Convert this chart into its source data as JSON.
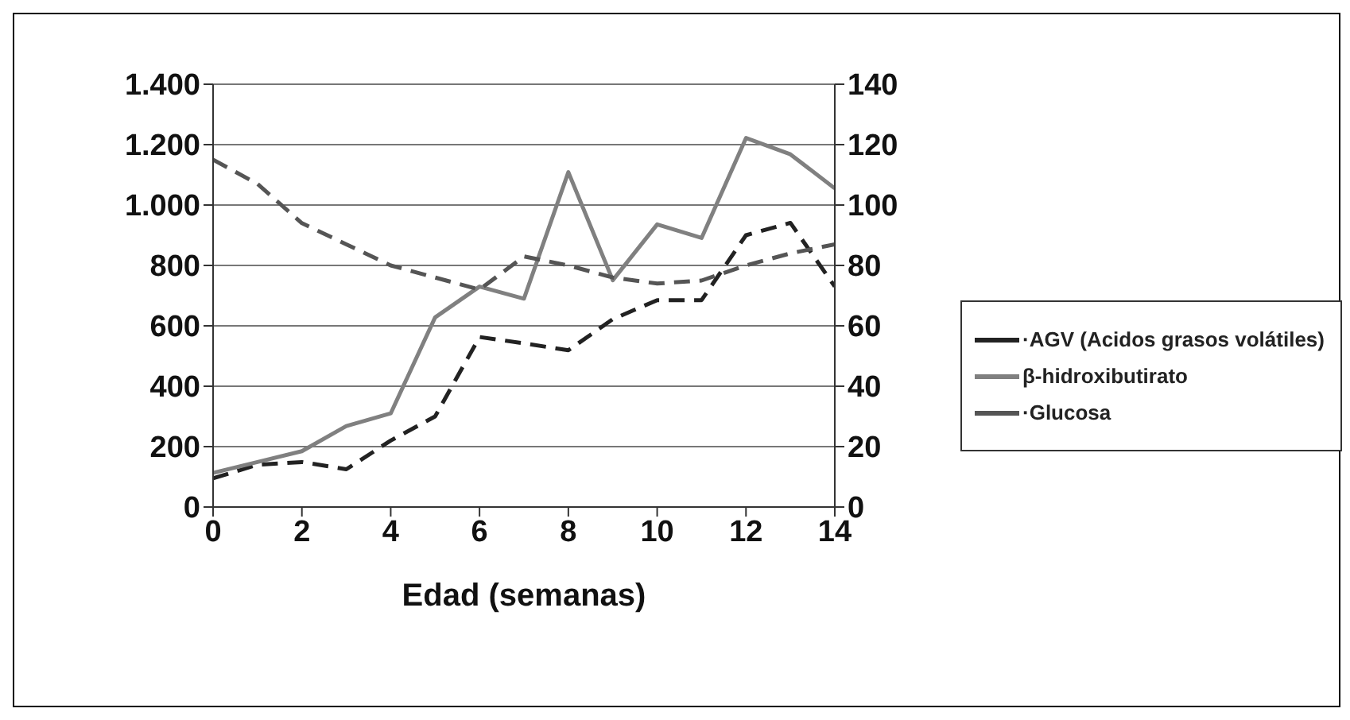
{
  "chart_data": {
    "type": "line",
    "xlabel": "Edad (semanas)",
    "x": [
      0,
      1,
      2,
      3,
      4,
      5,
      6,
      7,
      8,
      9,
      10,
      11,
      12,
      13,
      14
    ],
    "xlim": [
      0,
      14
    ],
    "xticks": [
      0,
      2,
      4,
      6,
      8,
      10,
      12,
      14
    ],
    "ylim": [
      0,
      1400
    ],
    "yticks": [
      {
        "value": 0,
        "label": "0"
      },
      {
        "value": 200,
        "label": "200"
      },
      {
        "value": 400,
        "label": "400"
      },
      {
        "value": 600,
        "label": "600"
      },
      {
        "value": 800,
        "label": "800"
      },
      {
        "value": 1000,
        "label": "1.000"
      },
      {
        "value": 1200,
        "label": "1.200"
      },
      {
        "value": 1400,
        "label": "1.400"
      }
    ],
    "y2lim": [
      0,
      140
    ],
    "y2ticks": [
      0,
      20,
      40,
      60,
      80,
      100,
      120,
      140
    ],
    "grid": "y",
    "legend": "right",
    "marker": "none",
    "series": [
      {
        "name": "·AGV (Acidos grasos volátiles)",
        "color": "#222222",
        "line_style": "dashed",
        "values": [
          95,
          140,
          149,
          125,
          220,
          300,
          563,
          542,
          519,
          622,
          685,
          685,
          900,
          941,
          730
        ]
      },
      {
        "name": "β-hidroxibutirato",
        "color": "#808080",
        "line_style": "solid",
        "values": [
          113,
          149,
          185,
          268,
          310,
          628,
          730,
          690,
          1109,
          751,
          936,
          891,
          1222,
          1168,
          1055
        ]
      },
      {
        "name": "·Glucosa",
        "color": "#555555",
        "line_style": "dashed",
        "axis": "y2",
        "values": [
          115,
          107,
          94,
          87,
          80,
          76,
          72,
          83,
          80,
          76,
          74,
          75,
          80,
          84,
          87
        ]
      }
    ]
  }
}
